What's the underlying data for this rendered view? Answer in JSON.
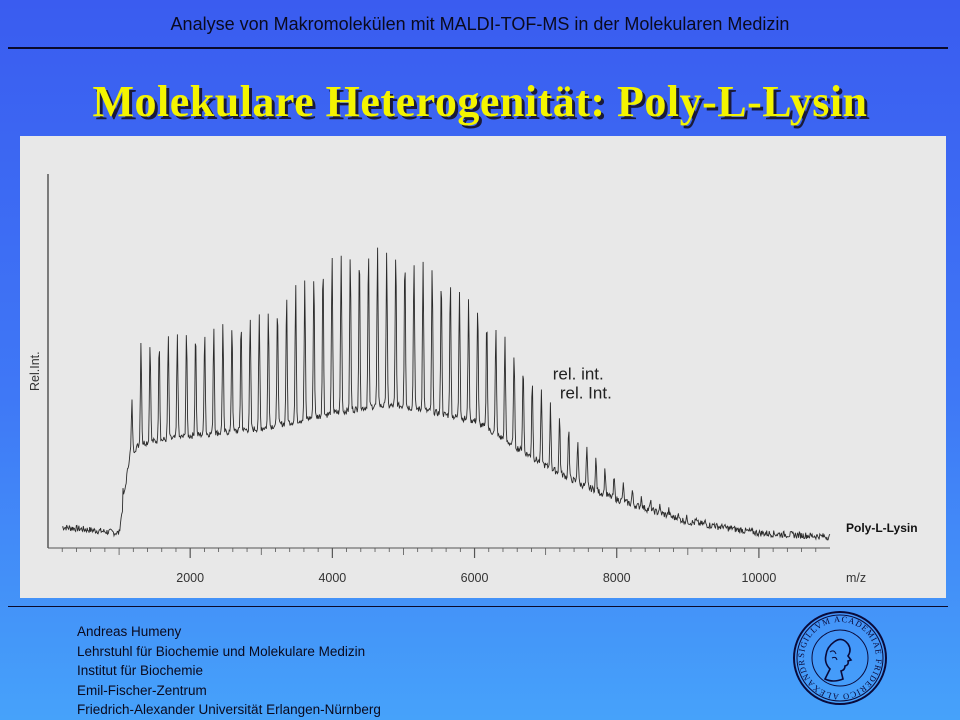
{
  "header": {
    "title": "Analyse von Makromolekülen mit MALDI-TOF-MS in der Molekularen Medizin"
  },
  "slide": {
    "title": "Molekulare Heterogenität: Poly-L-Lysin"
  },
  "chart_data": {
    "type": "line",
    "title": "",
    "ylabel": "Rel.Int.",
    "xlabel": "m/z",
    "xlim": [
      0,
      11000
    ],
    "ylim": [
      0,
      1
    ],
    "xticks": [
      2000,
      4000,
      6000,
      8000,
      10000
    ],
    "grid": false,
    "series": [
      {
        "name": "Poly-L-Lysin",
        "peak_spacing": 128,
        "first_peak": 1180,
        "last_peak": 10950,
        "envelope_x": [
          0,
          1000,
          1150,
          1300,
          2000,
          3000,
          3500,
          4000,
          4600,
          5000,
          5500,
          6000,
          6500,
          7000,
          7500,
          8000,
          8500,
          9000,
          10000,
          11000
        ],
        "envelope_peak_top": [
          0.06,
          0.04,
          0.35,
          0.55,
          0.58,
          0.62,
          0.7,
          0.78,
          0.8,
          0.79,
          0.74,
          0.66,
          0.54,
          0.4,
          0.28,
          0.18,
          0.12,
          0.08,
          0.04,
          0.03
        ],
        "envelope_baseline": [
          0.06,
          0.04,
          0.25,
          0.28,
          0.3,
          0.32,
          0.34,
          0.36,
          0.38,
          0.38,
          0.36,
          0.34,
          0.28,
          0.22,
          0.17,
          0.13,
          0.1,
          0.07,
          0.04,
          0.03
        ]
      }
    ],
    "annotations": [
      {
        "text": "rel. int.",
        "x": 7100,
        "y": 0.45
      },
      {
        "text": "rel. Int.",
        "x": 7200,
        "y": 0.4
      }
    ]
  },
  "footer": {
    "lines": [
      "Andreas Humeny",
      "Lehrstuhl für Biochemie und Molekulare Medizin",
      "Institut für Biochemie",
      "Emil-Fischer-Zentrum",
      "Friedrich-Alexander Universität Erlangen-Nürnberg"
    ]
  },
  "seal": {
    "text": "SIGILLVM ACADEMIAE FRIDERICO ALEXANDRINAE"
  },
  "colors": {
    "title_yellow": "#f4f400",
    "trace": "#333333",
    "panel_bg": "#e8e8e8"
  }
}
